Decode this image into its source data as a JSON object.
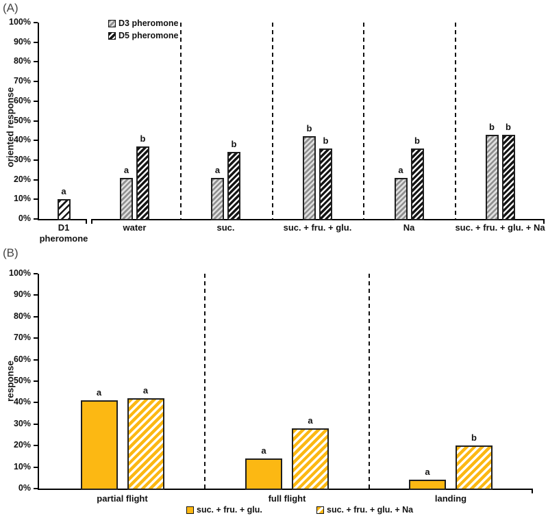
{
  "colors": {
    "orange": "#FCB813",
    "gray_bar": "#8f8f8f",
    "black_bar": "#141414",
    "axis": "#000000"
  },
  "chart_data": [
    {
      "panel": "(A)",
      "type": "bar",
      "title": "",
      "xlabel": "",
      "ylabel": "oriented response",
      "ylim": [
        0,
        100
      ],
      "yticks": [
        "0%",
        "10%",
        "20%",
        "30%",
        "40%",
        "50%",
        "60%",
        "70%",
        "80%",
        "90%",
        "100%"
      ],
      "grid": false,
      "legend_position": "top-left-inside",
      "legend": [
        {
          "label": "D3 pheromone",
          "style": "gray-hatch"
        },
        {
          "label": "D5 pheromone",
          "style": "black-hatch"
        }
      ],
      "groups": [
        {
          "label": "D1\npheromone",
          "bars": [
            {
              "series": "D1 pheromone",
              "value": 10,
              "letter": "a",
              "style": "open-hatch"
            }
          ]
        },
        {
          "label": "water",
          "bars": [
            {
              "series": "D3 pheromone",
              "value": 21,
              "letter": "a",
              "style": "gray-hatch"
            },
            {
              "series": "D5 pheromone",
              "value": 37,
              "letter": "b",
              "style": "black-hatch"
            }
          ]
        },
        {
          "label": "suc.",
          "bars": [
            {
              "series": "D3 pheromone",
              "value": 21,
              "letter": "a",
              "style": "gray-hatch"
            },
            {
              "series": "D5 pheromone",
              "value": 34,
              "letter": "b",
              "style": "black-hatch"
            }
          ]
        },
        {
          "label": "suc. + fru. + glu.",
          "bars": [
            {
              "series": "D3 pheromone",
              "value": 42,
              "letter": "b",
              "style": "gray-hatch"
            },
            {
              "series": "D5 pheromone",
              "value": 36,
              "letter": "b",
              "style": "black-hatch"
            }
          ]
        },
        {
          "label": "Na",
          "bars": [
            {
              "series": "D3 pheromone",
              "value": 21,
              "letter": "a",
              "style": "gray-hatch"
            },
            {
              "series": "D5 pheromone",
              "value": 36,
              "letter": "b",
              "style": "black-hatch"
            }
          ]
        },
        {
          "label": "suc. + fru. + glu. + Na",
          "bars": [
            {
              "series": "D3 pheromone",
              "value": 43,
              "letter": "b",
              "style": "gray-hatch"
            },
            {
              "series": "D5 pheromone",
              "value": 43,
              "letter": "b",
              "style": "black-hatch"
            }
          ]
        }
      ]
    },
    {
      "panel": "(B)",
      "type": "bar",
      "title": "",
      "xlabel": "",
      "ylabel": "response",
      "ylim": [
        0,
        100
      ],
      "yticks": [
        "0%",
        "10%",
        "20%",
        "30%",
        "40%",
        "50%",
        "60%",
        "70%",
        "80%",
        "90%",
        "100%"
      ],
      "grid": false,
      "legend_position": "bottom-center",
      "legend": [
        {
          "label": "suc. + fru. + glu.",
          "style": "orange-solid"
        },
        {
          "label": "suc. + fru. + glu. + Na",
          "style": "orange-hatch"
        }
      ],
      "groups": [
        {
          "label": "partial flight",
          "bars": [
            {
              "series": "suc. + fru. + glu.",
              "value": 41,
              "letter": "a",
              "style": "orange-solid"
            },
            {
              "series": "suc. + fru. + glu. + Na",
              "value": 42,
              "letter": "a",
              "style": "orange-hatch"
            }
          ]
        },
        {
          "label": "full flight",
          "bars": [
            {
              "series": "suc. + fru. + glu.",
              "value": 14,
              "letter": "a",
              "style": "orange-solid"
            },
            {
              "series": "suc. + fru. + glu. + Na",
              "value": 28,
              "letter": "a",
              "style": "orange-hatch"
            }
          ]
        },
        {
          "label": "landing",
          "bars": [
            {
              "series": "suc. + fru. + glu.",
              "value": 4,
              "letter": "a",
              "style": "orange-solid"
            },
            {
              "series": "suc. + fru. + glu. + Na",
              "value": 20,
              "letter": "b",
              "style": "orange-hatch"
            }
          ]
        }
      ]
    }
  ]
}
